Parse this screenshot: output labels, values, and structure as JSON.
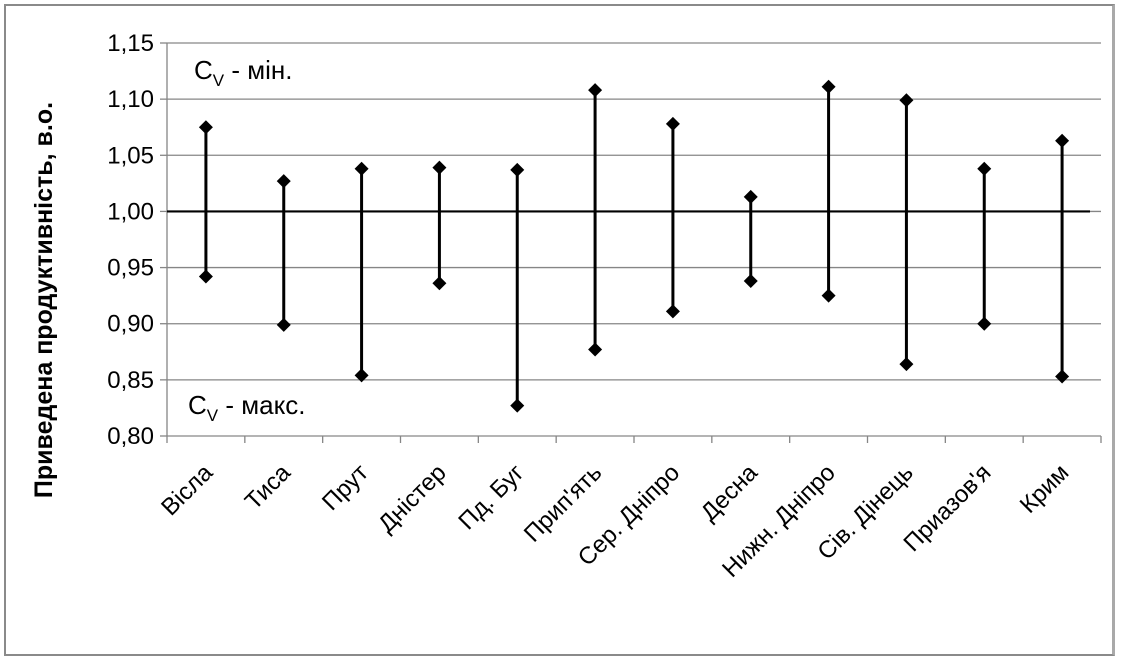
{
  "chart_data": {
    "type": "range",
    "title": "",
    "xlabel": "",
    "ylabel": "Приведена продуктивність, в.о.",
    "ylim": [
      0.8,
      1.15
    ],
    "ytick_step": 0.05,
    "yticks": [
      "0,80",
      "0,85",
      "0,90",
      "0,95",
      "1,00",
      "1,05",
      "1,10",
      "1,15"
    ],
    "reference_line": 1.0,
    "grid": true,
    "categories": [
      "Вісла",
      "Тиса",
      "Прут",
      "Дністер",
      "Пд. Буг",
      "Прип'ять",
      "Сер. Дніпро",
      "Десна",
      "Нижн. Дніпро",
      "Сів. Дінець",
      "Приазов'я",
      "Крим"
    ],
    "series": [
      {
        "values": [
          1.075,
          1.027,
          1.038,
          1.039,
          1.037,
          1.108,
          1.078,
          1.013,
          1.111,
          1.099,
          1.038,
          1.063
        ]
      },
      {
        "values": [
          0.942,
          0.899,
          0.854,
          0.936,
          0.827,
          0.877,
          0.911,
          0.938,
          0.925,
          0.864,
          0.9,
          0.853
        ]
      }
    ],
    "annotations": [
      {
        "main": "C",
        "sub": "V",
        "text": " - мін."
      },
      {
        "main": "C",
        "sub": "V",
        "text": " - макс."
      }
    ]
  },
  "colors": {
    "marker": "#000000",
    "grid": "#868686",
    "axis": "#868686",
    "reference": "#000000"
  }
}
